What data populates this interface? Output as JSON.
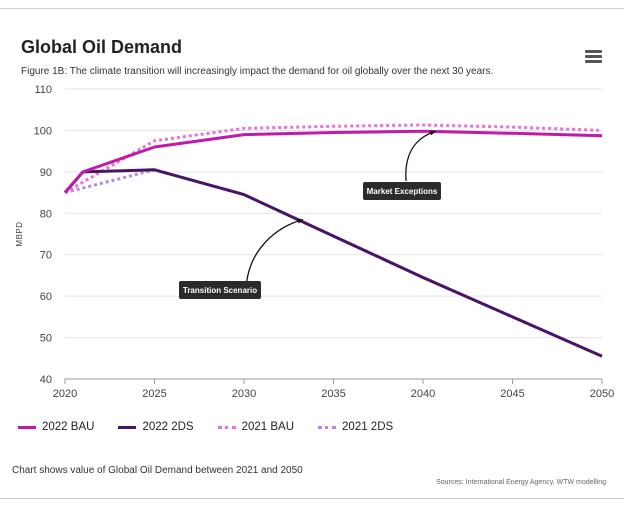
{
  "header": {
    "title": "Global Oil Demand",
    "subtitle": "Figure 1B: The climate transition will increasingly impact the demand for oil globally over the next 30 years."
  },
  "menu": {
    "icon": "hamburger-menu-icon"
  },
  "footer": {
    "note": "Chart shows value of Global Oil Demand between 2021 and 2050",
    "sources": "Sources: International Energy Agency, WTW modelling"
  },
  "chart_data": {
    "type": "line",
    "title": "Global Oil Demand",
    "xlabel": "",
    "ylabel": "MBPD",
    "xlim": [
      2020,
      2050
    ],
    "ylim": [
      40,
      110
    ],
    "xticks": [
      2020,
      2025,
      2030,
      2035,
      2040,
      2045,
      2050
    ],
    "yticks": [
      40,
      50,
      60,
      70,
      80,
      90,
      100,
      110
    ],
    "grid": "horizontal",
    "legend_position": "bottom",
    "series": [
      {
        "name": "2022 BAU",
        "color": "#c21aa8",
        "style": "solid",
        "x": [
          2020,
          2021,
          2025,
          2030,
          2035,
          2040,
          2045,
          2050
        ],
        "y": [
          85,
          90,
          96,
          99,
          99.5,
          99.8,
          99.3,
          98.7
        ]
      },
      {
        "name": "2022 2DS",
        "color": "#4a1466",
        "style": "solid",
        "x": [
          2020,
          2021,
          2025,
          2030,
          2035,
          2040,
          2045,
          2050
        ],
        "y": [
          85,
          90,
          90.5,
          84.5,
          74.5,
          64.5,
          55,
          45.5
        ]
      },
      {
        "name": "2021 BAU",
        "color": "#e573d3",
        "style": "dotted",
        "x": [
          2020,
          2025,
          2030,
          2035,
          2040,
          2045,
          2050
        ],
        "y": [
          85,
          97.5,
          100.5,
          101,
          101.3,
          100.8,
          100
        ]
      },
      {
        "name": "2021 2DS",
        "color": "#b887e0",
        "style": "dotted",
        "x": [
          2020,
          2025,
          2030,
          2035,
          2040,
          2045,
          2050
        ],
        "y": [
          85,
          90.5,
          84.5,
          74.5,
          64.5,
          55,
          45.5
        ]
      }
    ],
    "annotations": [
      {
        "text": "Market Exceptions",
        "target": [
          2040.7,
          99.8
        ]
      },
      {
        "text": "Transition Scenario",
        "target": [
          2033.3,
          78.5
        ]
      }
    ]
  }
}
